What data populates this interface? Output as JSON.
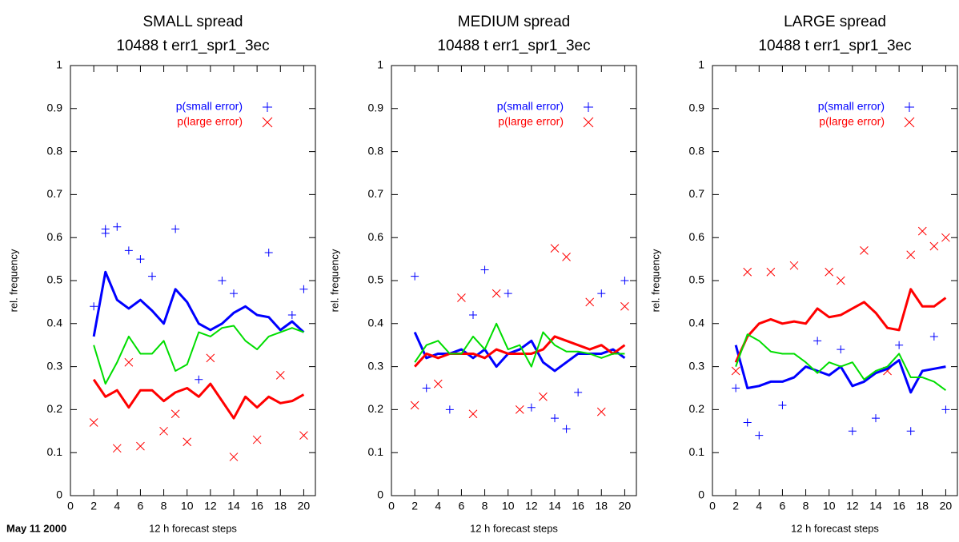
{
  "date_stamp": "May 11 2000",
  "chart_data": [
    {
      "type": "line",
      "title": "SMALL spread",
      "subtitle": "10488 t err1_spr1_3ec",
      "x_label": "12 h forecast steps",
      "y_label": "rel. frequency",
      "xlim": [
        0,
        21
      ],
      "ylim": [
        0,
        1
      ],
      "xticks": [
        0,
        2,
        4,
        6,
        8,
        10,
        12,
        14,
        16,
        18,
        20
      ],
      "yticks": [
        0,
        0.1,
        0.2,
        0.3,
        0.4,
        0.5,
        0.6,
        0.7,
        0.8,
        0.9,
        1
      ],
      "x": [
        2,
        3,
        4,
        5,
        6,
        7,
        8,
        9,
        10,
        11,
        12,
        13,
        14,
        15,
        16,
        17,
        18,
        19,
        20
      ],
      "lines": [
        {
          "color": "#0000ff",
          "values": [
            0.37,
            0.52,
            0.455,
            0.435,
            0.455,
            0.43,
            0.4,
            0.48,
            0.45,
            0.4,
            0.385,
            0.4,
            0.425,
            0.44,
            0.42,
            0.415,
            0.385,
            0.405,
            0.38
          ]
        },
        {
          "color": "#ff0000",
          "values": [
            0.27,
            0.23,
            0.245,
            0.205,
            0.245,
            0.245,
            0.22,
            0.24,
            0.25,
            0.23,
            0.26,
            0.22,
            0.18,
            0.23,
            0.205,
            0.23,
            0.215,
            0.22,
            0.235
          ]
        },
        {
          "color": "#00dd00",
          "values": [
            0.35,
            0.26,
            0.31,
            0.37,
            0.33,
            0.33,
            0.36,
            0.29,
            0.305,
            0.38,
            0.37,
            0.39,
            0.395,
            0.36,
            0.34,
            0.37,
            0.38,
            0.39,
            0.38
          ]
        }
      ],
      "series": [
        {
          "name": "p(small error)",
          "color": "#0000ff",
          "marker": "plus",
          "x": [
            3,
            3,
            4,
            9,
            17,
            5,
            6,
            2,
            11,
            14,
            20,
            7,
            13,
            19
          ],
          "values": [
            0.62,
            0.61,
            0.625,
            0.62,
            0.565,
            0.57,
            0.55,
            0.44,
            0.27,
            0.47,
            0.48,
            0.51,
            0.5,
            0.42
          ]
        },
        {
          "name": "p(large error)",
          "color": "#ff0000",
          "marker": "cross",
          "x": [
            4,
            6,
            14,
            2,
            10,
            8,
            20,
            16,
            12,
            5,
            18,
            9
          ],
          "values": [
            0.11,
            0.115,
            0.09,
            0.17,
            0.125,
            0.15,
            0.14,
            0.13,
            0.32,
            0.31,
            0.28,
            0.19
          ]
        }
      ]
    },
    {
      "type": "line",
      "title": "MEDIUM spread",
      "subtitle": "10488 t err1_spr1_3ec",
      "x_label": "12 h forecast steps",
      "y_label": "rel. frequency",
      "xlim": [
        0,
        21
      ],
      "ylim": [
        0,
        1
      ],
      "xticks": [
        0,
        2,
        4,
        6,
        8,
        10,
        12,
        14,
        16,
        18,
        20
      ],
      "yticks": [
        0,
        0.1,
        0.2,
        0.3,
        0.4,
        0.5,
        0.6,
        0.7,
        0.8,
        0.9,
        1
      ],
      "x": [
        2,
        3,
        4,
        5,
        6,
        7,
        8,
        9,
        10,
        11,
        12,
        13,
        14,
        15,
        16,
        17,
        18,
        19,
        20
      ],
      "lines": [
        {
          "color": "#0000ff",
          "values": [
            0.38,
            0.32,
            0.33,
            0.33,
            0.34,
            0.32,
            0.34,
            0.3,
            0.33,
            0.34,
            0.36,
            0.31,
            0.29,
            0.31,
            0.33,
            0.33,
            0.33,
            0.34,
            0.32
          ]
        },
        {
          "color": "#ff0000",
          "values": [
            0.3,
            0.33,
            0.32,
            0.33,
            0.33,
            0.33,
            0.32,
            0.34,
            0.33,
            0.33,
            0.33,
            0.34,
            0.37,
            0.36,
            0.35,
            0.34,
            0.35,
            0.33,
            0.35
          ]
        },
        {
          "color": "#00dd00",
          "values": [
            0.31,
            0.35,
            0.36,
            0.33,
            0.33,
            0.37,
            0.34,
            0.4,
            0.34,
            0.35,
            0.3,
            0.38,
            0.35,
            0.335,
            0.335,
            0.33,
            0.32,
            0.33,
            0.33
          ]
        }
      ],
      "series": [
        {
          "name": "p(small error)",
          "color": "#0000ff",
          "marker": "plus",
          "x": [
            2,
            8,
            15,
            14,
            20,
            10,
            5,
            12,
            18,
            3,
            7,
            16
          ],
          "values": [
            0.51,
            0.525,
            0.155,
            0.18,
            0.5,
            0.47,
            0.2,
            0.205,
            0.47,
            0.25,
            0.42,
            0.24
          ]
        },
        {
          "name": "p(large error)",
          "color": "#ff0000",
          "marker": "cross",
          "x": [
            14,
            15,
            18,
            7,
            6,
            2,
            11,
            20,
            9,
            4,
            13,
            17
          ],
          "values": [
            0.575,
            0.555,
            0.195,
            0.19,
            0.46,
            0.21,
            0.2,
            0.44,
            0.47,
            0.26,
            0.23,
            0.45
          ]
        }
      ]
    },
    {
      "type": "line",
      "title": "LARGE spread",
      "subtitle": "10488 t err1_spr1_3ec",
      "x_label": "12 h forecast steps",
      "y_label": "rel. frequency",
      "xlim": [
        0,
        21
      ],
      "ylim": [
        0,
        1
      ],
      "xticks": [
        0,
        2,
        4,
        6,
        8,
        10,
        12,
        14,
        16,
        18,
        20
      ],
      "yticks": [
        0,
        0.1,
        0.2,
        0.3,
        0.4,
        0.5,
        0.6,
        0.7,
        0.8,
        0.9,
        1
      ],
      "x": [
        2,
        3,
        4,
        5,
        6,
        7,
        8,
        9,
        10,
        11,
        12,
        13,
        14,
        15,
        16,
        17,
        18,
        19,
        20
      ],
      "lines": [
        {
          "color": "#0000ff",
          "values": [
            0.35,
            0.25,
            0.255,
            0.265,
            0.265,
            0.275,
            0.3,
            0.29,
            0.28,
            0.3,
            0.255,
            0.265,
            0.285,
            0.295,
            0.315,
            0.24,
            0.29,
            0.295,
            0.3
          ]
        },
        {
          "color": "#ff0000",
          "values": [
            0.31,
            0.37,
            0.4,
            0.41,
            0.4,
            0.405,
            0.4,
            0.435,
            0.415,
            0.42,
            0.435,
            0.45,
            0.425,
            0.39,
            0.385,
            0.48,
            0.44,
            0.44,
            0.46
          ]
        },
        {
          "color": "#00dd00",
          "values": [
            0.3,
            0.375,
            0.36,
            0.335,
            0.33,
            0.33,
            0.31,
            0.285,
            0.31,
            0.3,
            0.31,
            0.27,
            0.29,
            0.3,
            0.33,
            0.275,
            0.275,
            0.265,
            0.245
          ]
        }
      ],
      "series": [
        {
          "name": "p(small error)",
          "color": "#0000ff",
          "marker": "plus",
          "x": [
            4,
            17,
            12,
            14,
            3,
            20,
            6,
            2,
            9,
            11,
            16,
            19
          ],
          "values": [
            0.14,
            0.15,
            0.15,
            0.18,
            0.17,
            0.2,
            0.21,
            0.25,
            0.36,
            0.34,
            0.35,
            0.37
          ]
        },
        {
          "name": "p(large error)",
          "color": "#ff0000",
          "marker": "cross",
          "x": [
            18,
            20,
            7,
            13,
            3,
            17,
            19,
            15,
            2,
            5,
            10,
            11
          ],
          "values": [
            0.615,
            0.6,
            0.535,
            0.57,
            0.52,
            0.56,
            0.58,
            0.29,
            0.29,
            0.52,
            0.52,
            0.5
          ]
        }
      ]
    }
  ]
}
